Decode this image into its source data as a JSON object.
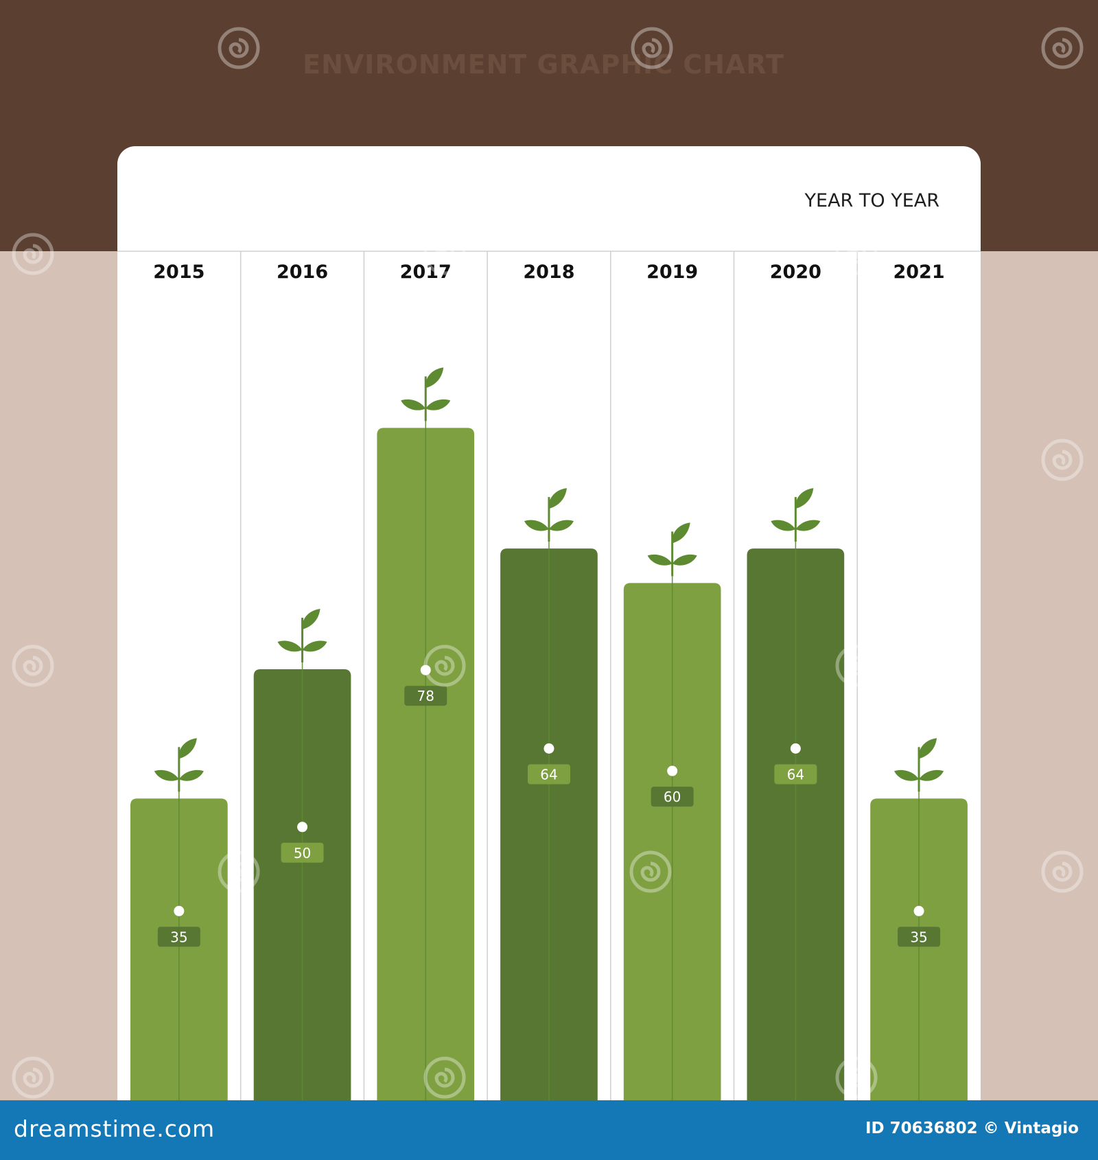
{
  "header": {
    "title": "ENVIRONMENT GRAPHIC CHART"
  },
  "chart_data": {
    "type": "bar",
    "title": "ENVIRONMENT GRAPHIC CHART",
    "subtitle": "YEAR TO YEAR",
    "categories": [
      "2015",
      "2016",
      "2017",
      "2018",
      "2019",
      "2020",
      "2021"
    ],
    "values": [
      35,
      50,
      78,
      64,
      60,
      64,
      35
    ],
    "value_labels": [
      "35",
      "50",
      "78",
      "64",
      "60",
      "64",
      "35"
    ],
    "xlabel": "",
    "ylabel": "",
    "ylim": [
      0,
      100
    ],
    "grid": false,
    "legend": "none",
    "colors": {
      "bar_light": "#7ea041",
      "bar_dark": "#587733",
      "sprout": "#5e8a32",
      "label_box_on_light": "#587733",
      "label_box_on_dark": "#7ea041"
    }
  },
  "footer": {
    "brand": "dreamstime.com",
    "credit": "ID 70636802 © Vintagio"
  },
  "colors": {
    "top_band": "#5b3f30",
    "background": "#d5c1b5",
    "panel": "#ffffff",
    "footer": "#1477b6"
  },
  "icons": {
    "sprout": "sprout-icon",
    "watermark": "spiral-watermark-icon"
  }
}
